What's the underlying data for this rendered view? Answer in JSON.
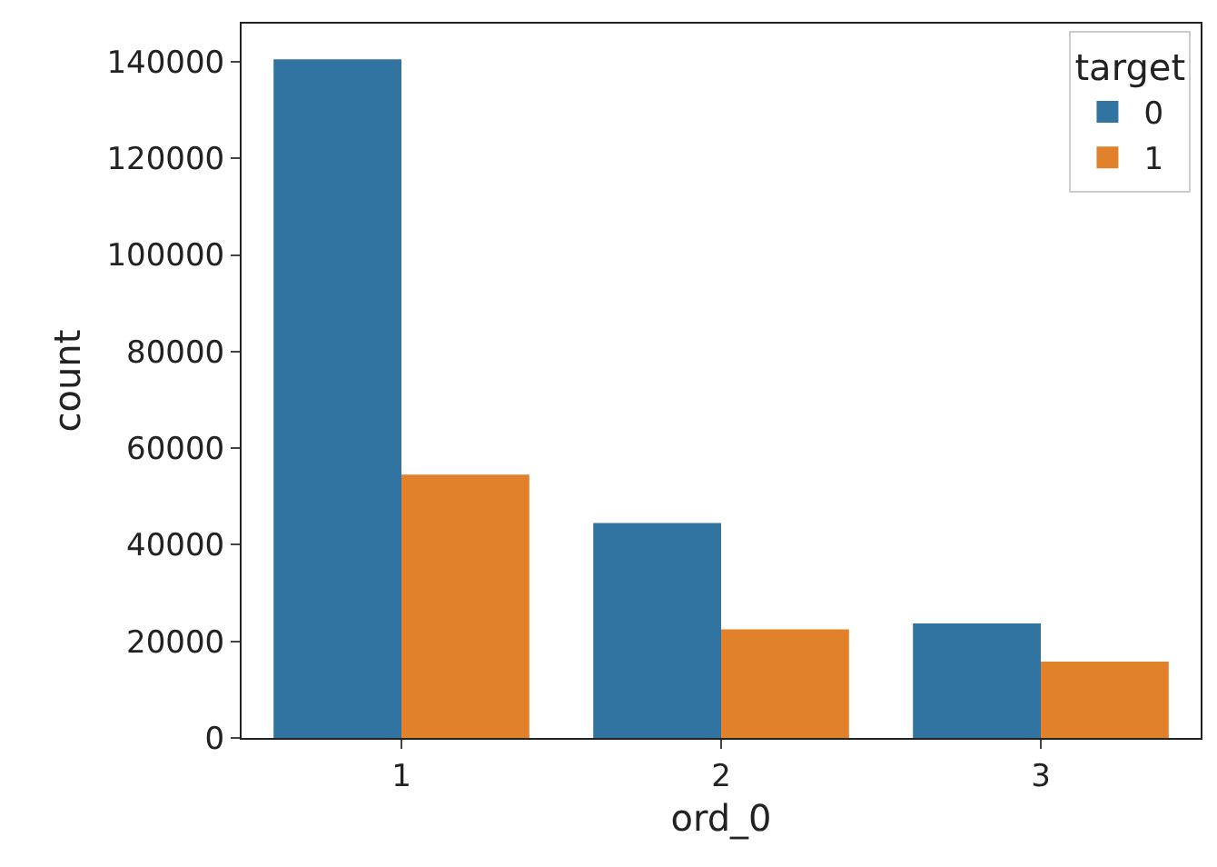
{
  "chart_data": {
    "type": "bar",
    "xlabel": "ord_0",
    "ylabel": "count",
    "legend_title": "target",
    "categories": [
      "1",
      "2",
      "3"
    ],
    "series": [
      {
        "name": "0",
        "color": "#3274a1",
        "values": [
          140500,
          44500,
          23700
        ]
      },
      {
        "name": "1",
        "color": "#e1812c",
        "values": [
          54500,
          22500,
          15800
        ]
      }
    ],
    "ylim": [
      0,
      147900
    ],
    "yticks": [
      0,
      20000,
      40000,
      60000,
      80000,
      100000,
      120000,
      140000
    ],
    "grid": false,
    "legend": "top right"
  }
}
